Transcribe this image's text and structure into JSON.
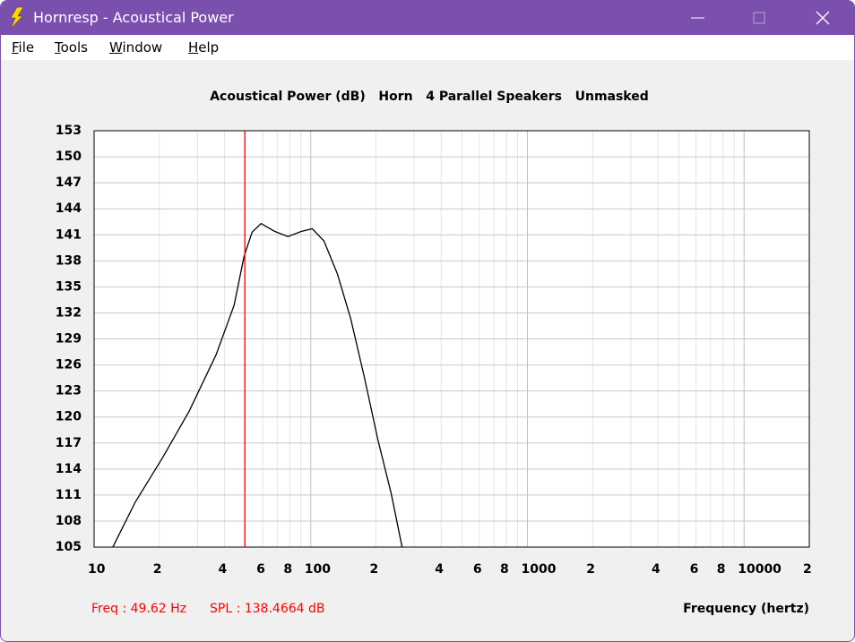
{
  "window": {
    "title": "Hornresp - Acoustical Power"
  },
  "menu": [
    "File",
    "Tools",
    "Window",
    "Help"
  ],
  "chart_data": {
    "type": "line",
    "title": "Acoustical Power (dB)   Horn   4 Parallel Speakers   Unmasked",
    "x_label": "Frequency (hertz)",
    "x_scale": "log",
    "xlim": [
      10,
      20000
    ],
    "ylim": [
      105,
      153
    ],
    "xticks": [
      10,
      {
        "value": 20,
        "label": "2"
      },
      {
        "value": 40,
        "label": "4"
      },
      {
        "value": 60,
        "label": "6"
      },
      {
        "value": 80,
        "label": "8"
      },
      100,
      {
        "value": 200,
        "label": "2"
      },
      {
        "value": 400,
        "label": "4"
      },
      {
        "value": 600,
        "label": "6"
      },
      {
        "value": 800,
        "label": "8"
      },
      1000,
      {
        "value": 2000,
        "label": "2"
      },
      {
        "value": 4000,
        "label": "4"
      },
      {
        "value": 6000,
        "label": "6"
      },
      {
        "value": 8000,
        "label": "8"
      },
      10000,
      {
        "value": 20000,
        "label": "2"
      }
    ],
    "xminor": [
      30,
      50,
      70,
      90,
      300,
      500,
      700,
      900,
      3000,
      5000,
      7000,
      9000
    ],
    "yticks": [
      105,
      108,
      111,
      114,
      117,
      120,
      123,
      126,
      129,
      132,
      135,
      138,
      141,
      144,
      147,
      150,
      153
    ],
    "grid": true,
    "x": [
      12.2,
      15.5,
      20.7,
      27.5,
      36.6,
      44.3,
      49.2,
      53.6,
      59.0,
      68.1,
      78.5,
      90.6,
      101.6,
      115,
      132.7,
      153,
      176.7,
      204,
      235,
      264
    ],
    "values": [
      105,
      110.2,
      115.3,
      120.7,
      127.2,
      132.9,
      138.5,
      141.3,
      142.3,
      141.4,
      140.8,
      141.4,
      141.7,
      140.3,
      136.5,
      131.3,
      124.6,
      117.4,
      111.2,
      105
    ],
    "color": "#000000",
    "cursor": {
      "x": 49.62,
      "color": "#ff0000",
      "labels": [
        "Freq : 49.62 Hz",
        "SPL : 138.4664 dB"
      ]
    }
  }
}
